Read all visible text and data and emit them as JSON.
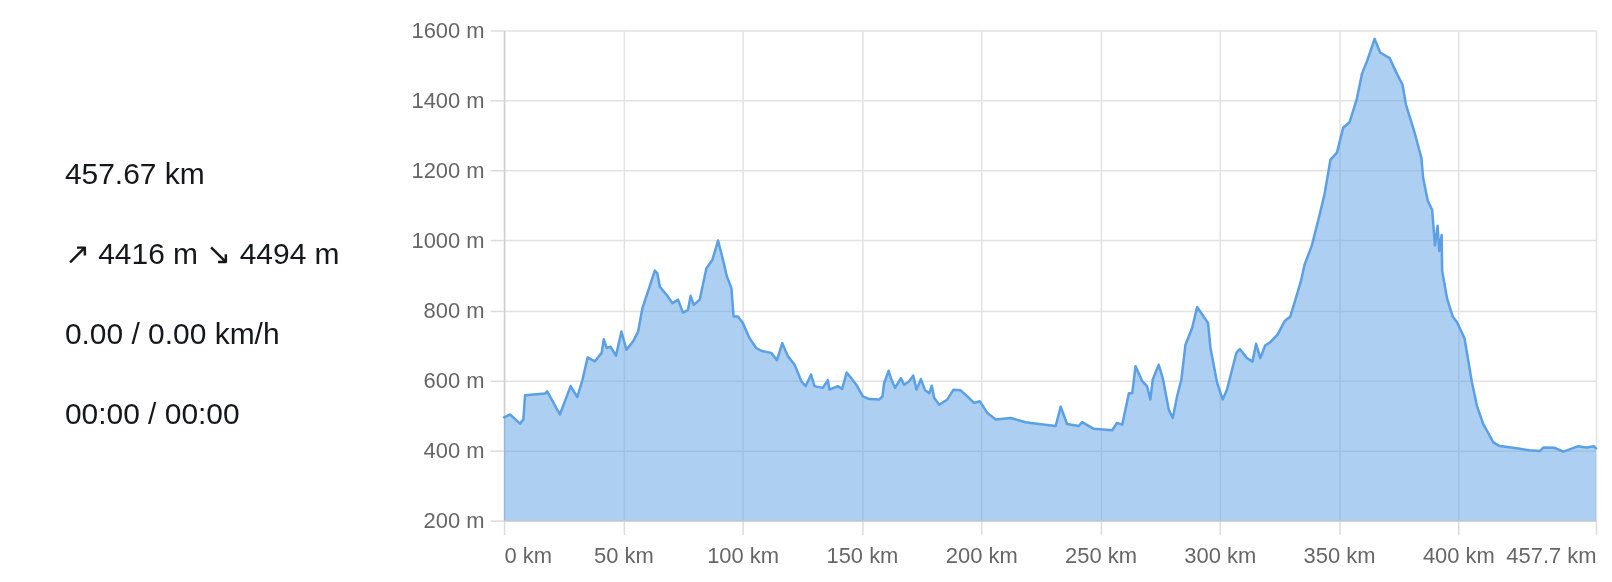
{
  "chart_data": [
    {
      "type": "other",
      "annotations": [
        "457.67 km",
        "↗ 4416 m ↘ 4494 m",
        "0.00 / 0.00 km/h",
        "00:00 / 00:00"
      ]
    },
    {
      "type": "area",
      "color": "#5ba0e4",
      "grid": true,
      "xlim": [
        0,
        457.7
      ],
      "ylim": [
        200,
        1600
      ],
      "xticks": [
        {
          "value": 0,
          "label": "0 km"
        },
        {
          "value": 50,
          "label": "50 km"
        },
        {
          "value": 100,
          "label": "100 km"
        },
        {
          "value": 150,
          "label": "150 km"
        },
        {
          "value": 200,
          "label": "200 km"
        },
        {
          "value": 250,
          "label": "250 km"
        },
        {
          "value": 300,
          "label": "300 km"
        },
        {
          "value": 350,
          "label": "350 km"
        },
        {
          "value": 400,
          "label": "400 km"
        },
        {
          "value": 457.7,
          "label": "457.7 km"
        }
      ],
      "yticks": [
        {
          "value": 200,
          "label": "200 m"
        },
        {
          "value": 400,
          "label": "400 m"
        },
        {
          "value": 600,
          "label": "600 m"
        },
        {
          "value": 800,
          "label": "800 m"
        },
        {
          "value": 1000,
          "label": "1000 m"
        },
        {
          "value": 1200,
          "label": "1200 m"
        },
        {
          "value": 1400,
          "label": "1400 m"
        },
        {
          "value": 1600,
          "label": "1600 m"
        }
      ],
      "x": [
        0,
        2.5,
        6.7,
        8.1,
        8.8,
        17.2,
        18.1,
        23.4,
        27.9,
        30.7,
        32.9,
        35.0,
        38.1,
        40.9,
        41.8,
        43.0,
        44.6,
        46.9,
        49.2,
        51.3,
        54.1,
        56.2,
        58.0,
        63.2,
        64.2,
        65.3,
        68.1,
        70.6,
        72.9,
        75.0,
        77.1,
        78.2,
        79.5,
        82.0,
        84.8,
        87.3,
        89.7,
        91.8,
        93.4,
        95.3,
        96.2,
        98.0,
        100.1,
        102.9,
        105.7,
        107.8,
        112.0,
        114.4,
        116.6,
        119.0,
        121.8,
        124.6,
        126.4,
        128.7,
        130.1,
        133.6,
        135.7,
        136.4,
        139.9,
        141.7,
        143.6,
        145.5,
        147.6,
        150.4,
        153.1,
        157.3,
        158.6,
        159.3,
        161.2,
        162.1,
        163.9,
        166.3,
        167.7,
        169.8,
        171.5,
        172.9,
        174.7,
        176.5,
        178.2,
        179.3,
        180.3,
        182.4,
        185.8,
        188.4,
        191.4,
        194.9,
        197.0,
        199.4,
        202.6,
        206.1,
        212.3,
        218.6,
        224.2,
        231.2,
        233.3,
        236.0,
        240.9,
        242.3,
        247.2,
        254.9,
        256.9,
        259.1,
        261.9,
        263.3,
        264.7,
        267.5,
        269.5,
        270.9,
        271.9,
        274.4,
        276.1,
        278.6,
        280.3,
        282.1,
        283.9,
        285.6,
        288.4,
        290.5,
        295.1,
        296.1,
        298.9,
        301.2,
        303.0,
        307.0,
        308.4,
        311.4,
        313.7,
        315.2,
        317.0,
        319.0,
        321.2,
        324.2,
        327.3,
        329.5,
        331.8,
        334.0,
        335.5,
        338.6,
        341.6,
        343.8,
        346.4,
        349.1,
        351.7,
        354.4,
        357.4,
        359.6,
        361.9,
        364.9,
        367.2,
        371.2,
        373.9,
        376.6,
        378.0,
        381.5,
        384.5,
        385.2,
        387.2,
        389.0,
        390.2,
        391.3,
        392.0,
        393.0,
        393.2,
        395.3,
        397.7,
        399.5,
        402.6,
        405.6,
        407.8,
        410.4,
        414.6,
        416.9,
        423.6,
        429.7,
        434.2,
        435.7,
        440.2,
        444.0,
        450.0,
        453.8,
        456.8,
        457.7
      ],
      "values": [
        495,
        503,
        477,
        489,
        558,
        563,
        569,
        503,
        584,
        553,
        603,
        666,
        655,
        679,
        718,
        693,
        697,
        671,
        740,
        688,
        712,
        740,
        807,
        914,
        907,
        868,
        845,
        821,
        831,
        794,
        802,
        842,
        816,
        831,
        921,
        944,
        1000,
        944,
        897,
        864,
        783,
        783,
        764,
        721,
        693,
        685,
        679,
        658,
        707,
        669,
        645,
        598,
        584,
        617,
        584,
        579,
        601,
        574,
        584,
        576,
        623,
        607,
        588,
        555,
        547,
        546,
        555,
        593,
        628,
        607,
        579,
        607,
        588,
        598,
        614,
        574,
        604,
        572,
        564,
        585,
        550,
        531,
        546,
        574,
        572,
        550,
        536,
        541,
        507,
        489,
        493,
        481,
        476,
        470,
        525,
        476,
        470,
        481,
        462,
        458,
        479,
        474,
        564,
        564,
        641,
        598,
        584,
        546,
        603,
        645,
        607,
        517,
        493,
        555,
        603,
        702,
        750,
        810,
        764,
        693,
        593,
        546,
        574,
        680,
        690,
        664,
        654,
        705,
        664,
        700,
        710,
        731,
        771,
        782,
        833,
        884,
        930,
        986,
        1067,
        1129,
        1231,
        1251,
        1322,
        1338,
        1404,
        1476,
        1516,
        1576,
        1537,
        1521,
        1481,
        1445,
        1389,
        1312,
        1236,
        1180,
        1113,
        1088,
        986,
        1042,
        970,
        1016,
        914,
        833,
        782,
        766,
        720,
        598,
        527,
        476,
        424,
        414,
        407,
        401,
        399,
        409,
        408,
        397,
        412,
        409,
        412,
        406
      ]
    }
  ]
}
